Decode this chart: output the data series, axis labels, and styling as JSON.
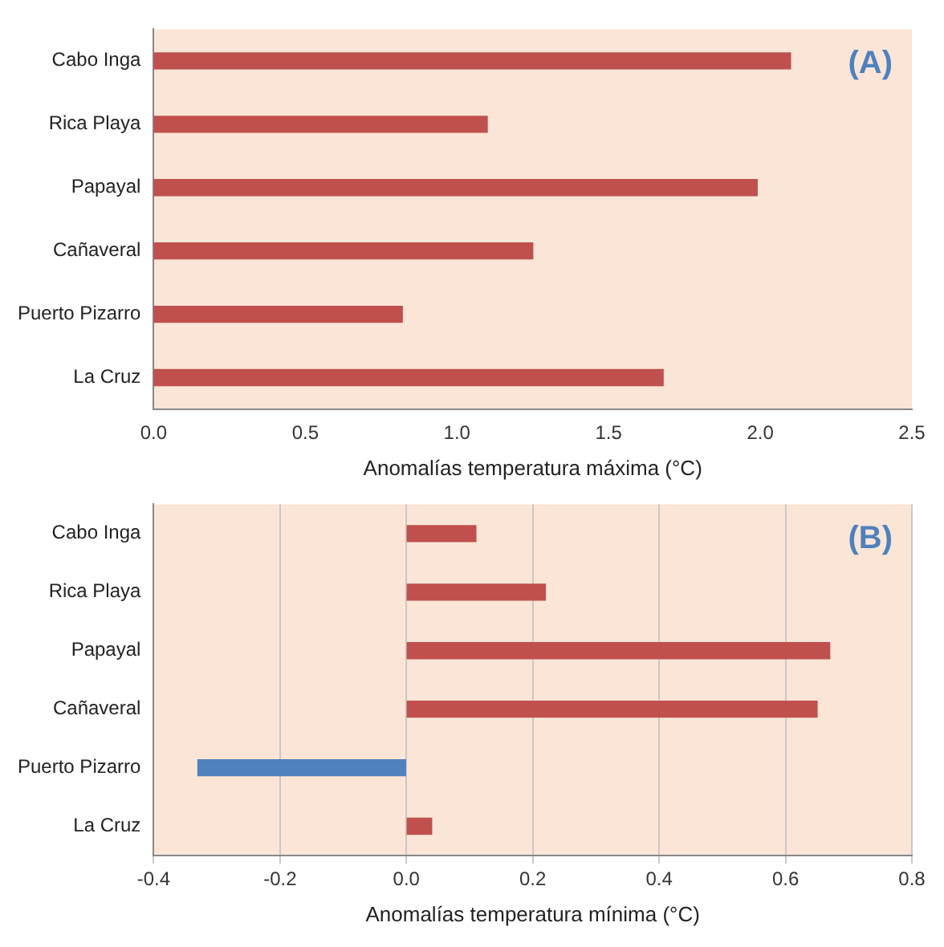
{
  "chart_data": [
    {
      "type": "bar",
      "orientation": "horizontal",
      "categories": [
        "Cabo Inga",
        "Rica Playa",
        "Papayal",
        "Cañaveral",
        "Puerto Pizarro",
        "La Cruz"
      ],
      "values": [
        2.1,
        1.1,
        1.99,
        1.25,
        0.82,
        1.68
      ],
      "color": "#c0504d",
      "xlim": [
        0,
        2.5
      ],
      "xticks": [
        {
          "value": 0,
          "label": "0.0"
        },
        0.5,
        {
          "value": 1,
          "label": "1.0"
        },
        1.5,
        {
          "value": 2,
          "label": "2.0"
        },
        2.5
      ],
      "xlabel": "Anomalías temperatura máxima (°C)",
      "grid": false,
      "annotations": [
        "(A)"
      ]
    },
    {
      "type": "bar",
      "orientation": "horizontal",
      "categories": [
        "Cabo Inga",
        "Rica Playa",
        "Papayal",
        "Cañaveral",
        "Puerto Pizarro",
        "La Cruz"
      ],
      "values": [
        0.11,
        0.22,
        0.67,
        0.65,
        -0.33,
        0.04
      ],
      "colors": [
        "#c0504d",
        "#c0504d",
        "#c0504d",
        "#c0504d",
        "#4f81bd",
        "#c0504d"
      ],
      "xlim": [
        -0.4,
        0.8
      ],
      "xticks": [
        -0.4,
        -0.2,
        {
          "value": 0,
          "label": "0.0"
        },
        0.2,
        0.4,
        0.6,
        0.8
      ],
      "xlabel": "Anomalías temperatura mínima (°C)",
      "grid": "x",
      "annotations": [
        "(B)"
      ]
    }
  ]
}
